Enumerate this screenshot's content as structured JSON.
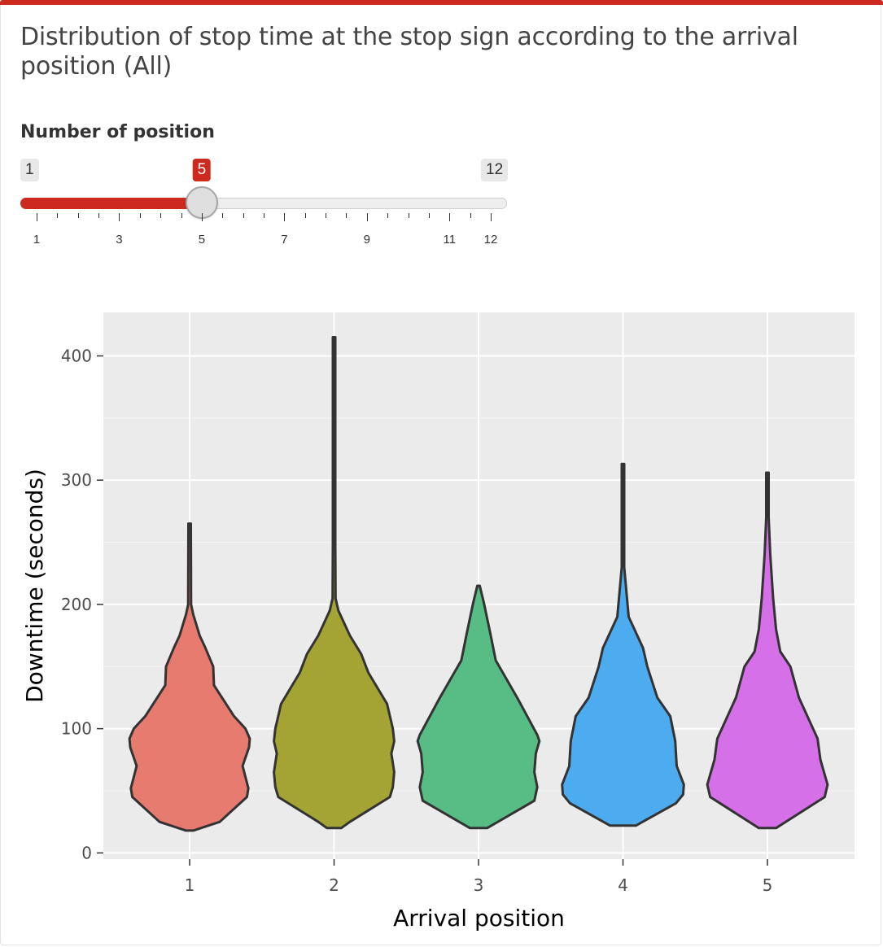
{
  "page": {
    "title": "Distribution of stop time at the stop sign according to the arrival position (All)"
  },
  "slider": {
    "label": "Number of position",
    "min_label": "1",
    "max_label": "12",
    "value_label": "5",
    "min": 1,
    "max": 12,
    "value": 5,
    "tick_labels": [
      "1",
      "3",
      "5",
      "7",
      "9",
      "11",
      "12"
    ],
    "accent_color": "#cc2a1f"
  },
  "chart_data": {
    "type": "violin",
    "title": "",
    "xlabel": "Arrival position",
    "ylabel": "Downtime (seconds)",
    "categories": [
      "1",
      "2",
      "3",
      "4",
      "5"
    ],
    "ylim": [
      -5,
      435
    ],
    "yticks": [
      0,
      100,
      200,
      300,
      400
    ],
    "grid": true,
    "legend": "none",
    "colors": [
      "#e87b6f",
      "#a3a433",
      "#57bd84",
      "#4dabf0",
      "#d570e8"
    ],
    "violins": [
      {
        "category": "1",
        "min": 18,
        "max": 265,
        "profile": [
          [
            18,
            0.05
          ],
          [
            25,
            0.42
          ],
          [
            45,
            0.8
          ],
          [
            52,
            0.82
          ],
          [
            70,
            0.74
          ],
          [
            85,
            0.83
          ],
          [
            92,
            0.84
          ],
          [
            100,
            0.78
          ],
          [
            110,
            0.62
          ],
          [
            135,
            0.34
          ],
          [
            150,
            0.33
          ],
          [
            165,
            0.22
          ],
          [
            175,
            0.14
          ],
          [
            192,
            0.05
          ],
          [
            200,
            0.02
          ],
          [
            265,
            0.01
          ]
        ]
      },
      {
        "category": "2",
        "min": 20,
        "max": 415,
        "profile": [
          [
            20,
            0.1
          ],
          [
            25,
            0.22
          ],
          [
            45,
            0.78
          ],
          [
            53,
            0.82
          ],
          [
            65,
            0.84
          ],
          [
            80,
            0.8
          ],
          [
            90,
            0.84
          ],
          [
            100,
            0.82
          ],
          [
            120,
            0.74
          ],
          [
            145,
            0.48
          ],
          [
            160,
            0.38
          ],
          [
            175,
            0.22
          ],
          [
            195,
            0.06
          ],
          [
            205,
            0.02
          ],
          [
            250,
            0.01
          ],
          [
            415,
            0.01
          ]
        ]
      },
      {
        "category": "3",
        "min": 20,
        "max": 215,
        "profile": [
          [
            20,
            0.12
          ],
          [
            42,
            0.78
          ],
          [
            53,
            0.82
          ],
          [
            65,
            0.78
          ],
          [
            80,
            0.8
          ],
          [
            90,
            0.85
          ],
          [
            95,
            0.82
          ],
          [
            125,
            0.54
          ],
          [
            155,
            0.24
          ],
          [
            175,
            0.17
          ],
          [
            200,
            0.08
          ],
          [
            215,
            0.01
          ]
        ]
      },
      {
        "category": "4",
        "min": 22,
        "max": 313,
        "profile": [
          [
            22,
            0.18
          ],
          [
            40,
            0.74
          ],
          [
            47,
            0.84
          ],
          [
            55,
            0.85
          ],
          [
            70,
            0.75
          ],
          [
            90,
            0.73
          ],
          [
            110,
            0.66
          ],
          [
            125,
            0.48
          ],
          [
            150,
            0.34
          ],
          [
            165,
            0.28
          ],
          [
            190,
            0.08
          ],
          [
            230,
            0.01
          ],
          [
            313,
            0.01
          ]
        ]
      },
      {
        "category": "5",
        "min": 20,
        "max": 306,
        "profile": [
          [
            20,
            0.12
          ],
          [
            45,
            0.8
          ],
          [
            55,
            0.84
          ],
          [
            75,
            0.74
          ],
          [
            92,
            0.7
          ],
          [
            125,
            0.44
          ],
          [
            150,
            0.32
          ],
          [
            162,
            0.18
          ],
          [
            180,
            0.12
          ],
          [
            205,
            0.08
          ],
          [
            240,
            0.04
          ],
          [
            270,
            0.01
          ],
          [
            306,
            0.01
          ]
        ]
      }
    ]
  }
}
